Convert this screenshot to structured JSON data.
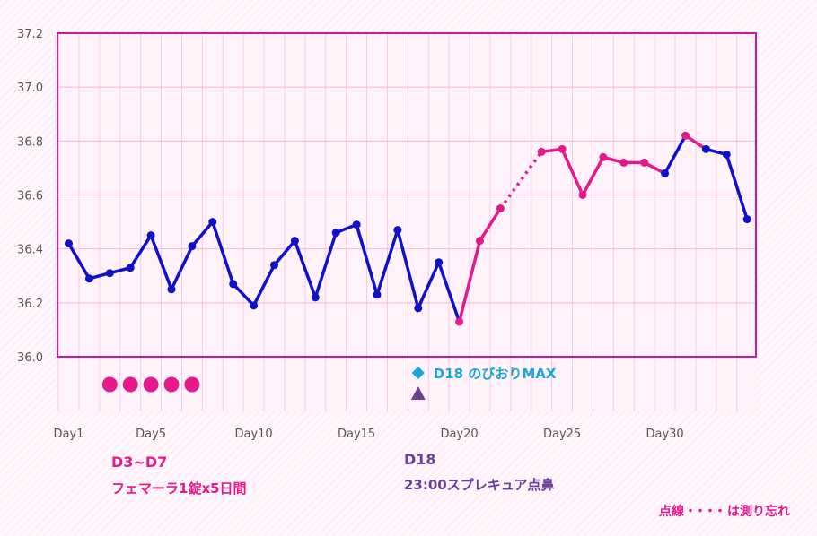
{
  "chart_data": {
    "type": "line",
    "title": "",
    "xlabel": "",
    "ylabel": "",
    "ylim": [
      36.0,
      37.2
    ],
    "yticks": [
      "36.0",
      "36.2",
      "36.4",
      "36.6",
      "36.8",
      "37.0",
      "37.2"
    ],
    "xticks": [
      {
        "day": 1,
        "label": "Day1"
      },
      {
        "day": 5,
        "label": "Day5"
      },
      {
        "day": 10,
        "label": "Day10"
      },
      {
        "day": 15,
        "label": "Day15"
      },
      {
        "day": 20,
        "label": "Day20"
      },
      {
        "day": 25,
        "label": "Day25"
      },
      {
        "day": 30,
        "label": "Day30"
      }
    ],
    "grid": true,
    "days": [
      1,
      2,
      3,
      4,
      5,
      6,
      7,
      8,
      9,
      10,
      11,
      12,
      13,
      14,
      15,
      16,
      17,
      18,
      19,
      20,
      21,
      22,
      23,
      24,
      25,
      26,
      27,
      28,
      29,
      30,
      31,
      32,
      33,
      34
    ],
    "temperatures": [
      36.42,
      36.29,
      36.31,
      36.33,
      36.45,
      36.25,
      36.41,
      36.5,
      36.27,
      36.19,
      36.34,
      36.43,
      36.22,
      36.46,
      36.49,
      36.23,
      36.47,
      36.18,
      36.35,
      36.13,
      36.43,
      36.55,
      null,
      36.76,
      36.77,
      36.6,
      36.74,
      36.72,
      36.72,
      36.68,
      36.82,
      36.77,
      36.75,
      36.51
    ],
    "missing_days": [
      23
    ],
    "low_phase_color": "#1010cc",
    "high_phase_color": "#e6198c",
    "segments": [
      {
        "from_day": 1,
        "to_day": 20,
        "color": "#1010cc"
      },
      {
        "from_day": 20,
        "to_day": 30,
        "color": "#e6198c"
      },
      {
        "from_day": 30,
        "to_day": 31,
        "color": "#1010cc"
      },
      {
        "from_day": 31,
        "to_day": 32,
        "color": "#e6198c"
      },
      {
        "from_day": 32,
        "to_day": 34,
        "color": "#1010cc"
      }
    ],
    "medication_markers": {
      "days": [
        3,
        4,
        5,
        6,
        7
      ],
      "color": "#e6198c"
    },
    "lh_max_marker": {
      "day": 18,
      "label": "D18 のびおりMAX",
      "color": "#1aa3dc"
    },
    "intercourse_marker": {
      "day": 18,
      "color": "#6a3d9a"
    }
  },
  "notes": {
    "medication_title": "D3~D7",
    "medication_detail": "フェマーラ1錠x5日間",
    "event_title": "D18",
    "event_detail": "23:00スプレキュア点鼻",
    "dotted_legend_prefix": "点線",
    "dotted_legend_dots": "・・・・",
    "dotted_legend_suffix": "は測り忘れ"
  }
}
